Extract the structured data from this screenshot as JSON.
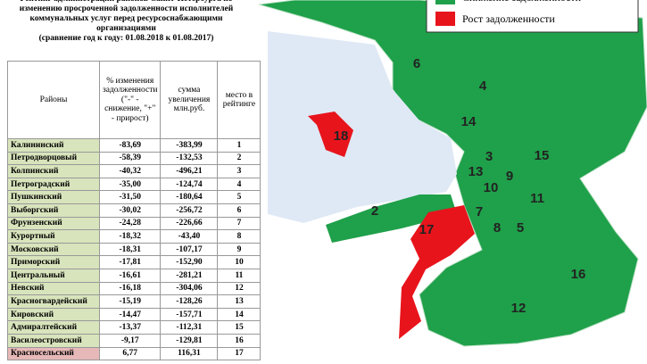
{
  "title": "Рейтинг администраций районов Санкт-Петербурга по изменению просроченной задолженности исполнителей коммунальных услуг перед ресурсоснабжающими организациями",
  "subtitle": "(сравнение год к году: 01.08.2018 к 01.08.2017)",
  "table": {
    "header": [
      "Районы",
      "% изменения задолженности (\"-\" - снижение, \"+\" - прирост)",
      "сумма увеличения млн.руб.",
      "место в рейтинге"
    ],
    "rows": [
      [
        "Калининский",
        "-83,69",
        "-383,99",
        "1"
      ],
      [
        "Петродворцовый",
        "-58,39",
        "-132,53",
        "2"
      ],
      [
        "Колпинский",
        "-40,32",
        "-496,21",
        "3"
      ],
      [
        "Петроградский",
        "-35,00",
        "-124,74",
        "4"
      ],
      [
        "Пушкинский",
        "-31,50",
        "-180,64",
        "5"
      ],
      [
        "Выборгский",
        "-30,02",
        "-256,72",
        "6"
      ],
      [
        "Фрунзенский",
        "-24,28",
        "-226,66",
        "7"
      ],
      [
        "Курортный",
        "-18,32",
        "-43,40",
        "8"
      ],
      [
        "Московский",
        "-18,31",
        "-107,17",
        "9"
      ],
      [
        "Приморский",
        "-17,81",
        "-152,90",
        "10"
      ],
      [
        "Центральный",
        "-16,61",
        "-281,21",
        "11"
      ],
      [
        "Невский",
        "-16,18",
        "-304,06",
        "12"
      ],
      [
        "Красногвардейский",
        "-15,19",
        "-128,26",
        "13"
      ],
      [
        "Кировский",
        "-14,47",
        "-157,71",
        "14"
      ],
      [
        "Адмиралтейский",
        "-13,37",
        "-112,31",
        "15"
      ],
      [
        "Василеостровский",
        "-9,17",
        "-129,81",
        "16"
      ],
      [
        "Красносельский",
        "6,77",
        "116,31",
        "17"
      ]
    ]
  },
  "map": {
    "legend": [
      {
        "label": "Снижение задолженности",
        "color": "#1fa04a"
      },
      {
        "label": "Рост задолженности",
        "color": "#e8141c"
      }
    ],
    "labels": [
      "6",
      "4",
      "14",
      "18",
      "3",
      "15",
      "13",
      "9",
      "10",
      "11",
      "2",
      "7",
      "17",
      "8",
      "5",
      "16",
      "12"
    ]
  }
}
